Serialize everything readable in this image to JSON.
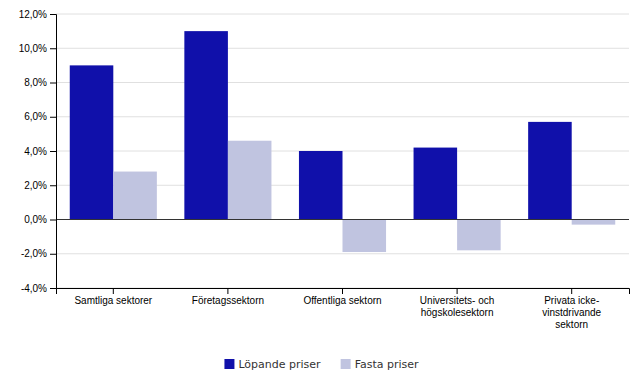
{
  "chart_data": {
    "type": "bar",
    "categories": [
      "Samtliga sektorer",
      "Företagssektorn",
      "Offentliga sektorn",
      "Universitets- och\nhögskolesektorn",
      "Privata icke-\nvinstdrivande\nsektorn"
    ],
    "series": [
      {
        "name": "Löpande priser",
        "color": "#1010AA",
        "values": [
          0.09,
          0.11,
          0.04,
          0.042,
          0.057
        ]
      },
      {
        "name": "Fasta priser",
        "color": "#C0C4E0",
        "values": [
          0.028,
          0.046,
          -0.019,
          -0.018,
          -0.003
        ]
      }
    ],
    "ylim": [
      -0.04,
      0.12
    ],
    "yticks": [
      {
        "value": -0.04,
        "label": "-4,0%"
      },
      {
        "value": -0.02,
        "label": "-2,0%"
      },
      {
        "value": 0.0,
        "label": "0,0%"
      },
      {
        "value": 0.02,
        "label": "2,0%"
      },
      {
        "value": 0.04,
        "label": "4,0%"
      },
      {
        "value": 0.06,
        "label": "6,0%"
      },
      {
        "value": 0.08,
        "label": "8,0%"
      },
      {
        "value": 0.1,
        "label": "10,0%"
      },
      {
        "value": 0.12,
        "label": "12,0%"
      }
    ],
    "grid": true,
    "legend": "bottom"
  }
}
